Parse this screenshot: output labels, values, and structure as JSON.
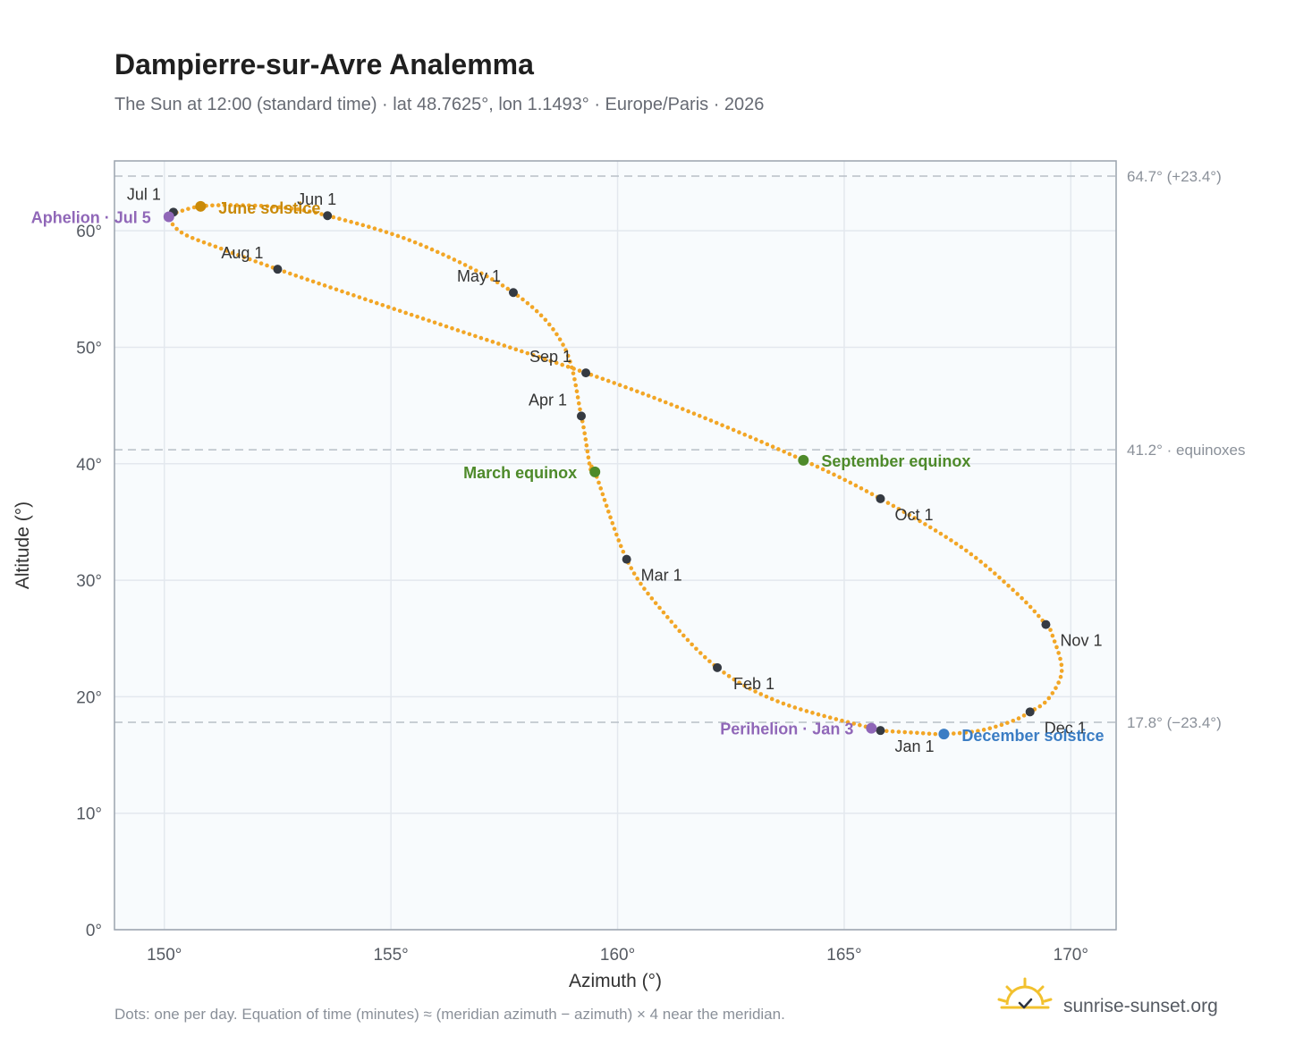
{
  "title": "Dampierre-sur-Avre Analemma",
  "subtitle": "The Sun at 12:00 (standard time) · lat 48.7625°, lon 1.1493° · Europe/Paris · 2026",
  "footnote": "Dots: one per day. Equation of time (minutes) ≈ (meridian azimuth − azimuth) × 4 near the meridian.",
  "brand": {
    "name": "sunrise-sunset.org",
    "logo_icon": "sun-logo-icon"
  },
  "colors": {
    "path": "#f2a626",
    "month_dot": "#353a42",
    "solstice_june": "#c98a0a",
    "solstice_december": "#3b7dc4",
    "equinox": "#4e8a2a",
    "apsis": "#9067b8",
    "plot_bg": "#f8fbfd",
    "grid": "#e3e8ee",
    "ref_line": "#b8bfc7"
  },
  "chart_data": {
    "type": "scatter",
    "title": "Dampierre-sur-Avre Analemma",
    "xlabel": "Azimuth (°)",
    "ylabel": "Altitude (°)",
    "xlim": [
      148.9,
      171.0
    ],
    "ylim": [
      0,
      66
    ],
    "x_ticks": [
      150,
      155,
      160,
      165,
      170
    ],
    "x_tick_labels": [
      "150°",
      "155°",
      "160°",
      "165°",
      "170°"
    ],
    "y_ticks": [
      0,
      10,
      20,
      30,
      40,
      50,
      60
    ],
    "y_tick_labels": [
      "0°",
      "10°",
      "20°",
      "30°",
      "40°",
      "50°",
      "60°"
    ],
    "grid": true,
    "reference_lines": [
      {
        "y": 64.7,
        "label": "64.7° (+23.4°)"
      },
      {
        "y": 41.2,
        "label": "41.2° · equinoxes"
      },
      {
        "y": 17.8,
        "label": "17.8° (−23.4°)"
      }
    ],
    "path_points": [
      [
        165.8,
        17.1
      ],
      [
        166.6,
        16.9
      ],
      [
        167.2,
        16.8
      ],
      [
        168.0,
        17.1
      ],
      [
        168.7,
        17.9
      ],
      [
        169.1,
        18.7
      ],
      [
        169.5,
        19.8
      ],
      [
        169.8,
        22.2
      ],
      [
        169.6,
        25.2
      ],
      [
        169.45,
        26.2
      ],
      [
        168.8,
        28.9
      ],
      [
        167.6,
        32.8
      ],
      [
        165.8,
        37.0
      ],
      [
        164.1,
        40.3
      ],
      [
        161.5,
        44.6
      ],
      [
        159.3,
        47.8
      ],
      [
        156.6,
        51.3
      ],
      [
        154.3,
        54.3
      ],
      [
        152.5,
        56.7
      ],
      [
        151.3,
        58.4
      ],
      [
        150.4,
        59.8
      ],
      [
        150.1,
        61.2
      ],
      [
        150.3,
        61.6
      ],
      [
        150.8,
        62.1
      ],
      [
        151.6,
        62.2
      ],
      [
        152.6,
        62.0
      ],
      [
        153.6,
        61.3
      ],
      [
        155.6,
        58.9
      ],
      [
        157.7,
        54.7
      ],
      [
        158.8,
        50.2
      ],
      [
        159.2,
        44.1
      ],
      [
        159.4,
        39.6
      ],
      [
        159.5,
        39.3
      ],
      [
        160.2,
        31.8
      ],
      [
        161.0,
        27.3
      ],
      [
        162.2,
        22.5
      ],
      [
        163.6,
        19.5
      ],
      [
        165.6,
        17.3
      ],
      [
        165.8,
        17.1
      ]
    ],
    "month_markers": [
      {
        "label": "Jan 1",
        "x": 165.8,
        "y": 17.1
      },
      {
        "label": "Feb 1",
        "x": 162.2,
        "y": 22.5
      },
      {
        "label": "Mar 1",
        "x": 160.2,
        "y": 31.8
      },
      {
        "label": "Apr 1",
        "x": 159.2,
        "y": 44.1
      },
      {
        "label": "May 1",
        "x": 157.7,
        "y": 54.7
      },
      {
        "label": "Jun 1",
        "x": 153.6,
        "y": 61.3
      },
      {
        "label": "Jul 1",
        "x": 150.2,
        "y": 61.6
      },
      {
        "label": "Aug 1",
        "x": 152.5,
        "y": 56.7
      },
      {
        "label": "Sep 1",
        "x": 159.3,
        "y": 47.8
      },
      {
        "label": "Oct 1",
        "x": 165.8,
        "y": 37.0
      },
      {
        "label": "Nov 1",
        "x": 169.45,
        "y": 26.2
      },
      {
        "label": "Dec 1",
        "x": 169.1,
        "y": 18.7
      }
    ],
    "events": [
      {
        "label": "June solstice",
        "x": 150.8,
        "y": 62.1,
        "color_key": "solstice_june"
      },
      {
        "label": "December solstice",
        "x": 167.2,
        "y": 16.8,
        "color_key": "solstice_december"
      },
      {
        "label": "March equinox",
        "x": 159.5,
        "y": 39.3,
        "color_key": "equinox"
      },
      {
        "label": "September equinox",
        "x": 164.1,
        "y": 40.3,
        "color_key": "equinox"
      },
      {
        "label": "Aphelion · Jul 5",
        "x": 150.1,
        "y": 61.2,
        "color_key": "apsis"
      },
      {
        "label": "Perihelion · Jan 3",
        "x": 165.6,
        "y": 17.3,
        "color_key": "apsis"
      }
    ]
  }
}
